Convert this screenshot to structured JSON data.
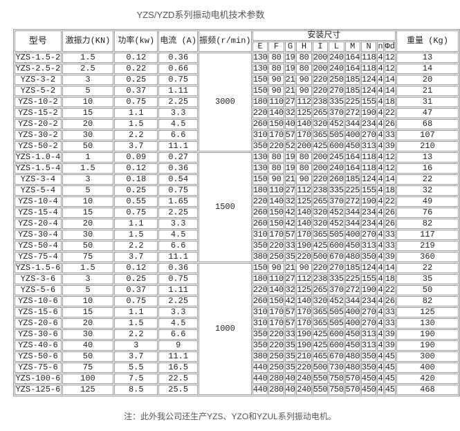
{
  "title": "YZS/YZD系列振动电机技术参数",
  "headers": {
    "model": "型号",
    "force": "激振力(KN)",
    "power": "功率(kw)",
    "current": "电流 (A)",
    "freq": "振频(r/min)",
    "install": "安装尺寸",
    "weight": "重量 (Kg)",
    "dims": [
      "E",
      "F",
      "G",
      "H",
      "I",
      "L",
      "M",
      "N",
      "n",
      "Φd"
    ]
  },
  "groups": [
    {
      "freq": "3000",
      "rows": [
        [
          "YZS-1.5-2",
          "1.5",
          "0.12",
          "0.36",
          "130",
          "80",
          "19",
          "80",
          "200",
          "240",
          "164",
          "118",
          "4",
          "12",
          "13"
        ],
        [
          "YZS-2.5-2",
          "2.5",
          "0.22",
          "0.66",
          "130",
          "80",
          "19",
          "80",
          "200",
          "240",
          "164",
          "118",
          "4",
          "12",
          "14"
        ],
        [
          "YZS-3-2",
          "3",
          "0.25",
          "0.75",
          "150",
          "90",
          "21",
          "90",
          "220",
          "250",
          "185",
          "124",
          "4",
          "14",
          "20"
        ],
        [
          "YZS-5-2",
          "5",
          "0.37",
          "1.11",
          "150",
          "90",
          "21",
          "90",
          "220",
          "270",
          "185",
          "124",
          "4",
          "14",
          "21"
        ],
        [
          "YZS-10-2",
          "10",
          "0.75",
          "2.25",
          "180",
          "110",
          "27",
          "112",
          "238",
          "335",
          "225",
          "155",
          "4",
          "18",
          "31"
        ],
        [
          "YZS-15-2",
          "15",
          "1.1",
          "3.3",
          "220",
          "140",
          "32",
          "125",
          "265",
          "370",
          "272",
          "190",
          "4",
          "22",
          "47"
        ],
        [
          "YZS-20-2",
          "20",
          "1.5",
          "4.5",
          "260",
          "150",
          "40",
          "140",
          "320",
          "452",
          "344",
          "234",
          "4",
          "26",
          "68"
        ],
        [
          "YZS-30-2",
          "30",
          "2.2",
          "6.6",
          "310",
          "170",
          "57",
          "170",
          "365",
          "505",
          "400",
          "270",
          "4",
          "33",
          "107"
        ],
        [
          "YZS-50-2",
          "50",
          "3.7",
          "11.1",
          "350",
          "220",
          "52",
          "200",
          "425",
          "600",
          "450",
          "313",
          "4",
          "39",
          "210"
        ]
      ]
    },
    {
      "freq": "1500",
      "rows": [
        [
          "YZS-1.0-4",
          "1",
          "0.09",
          "0.27",
          "130",
          "80",
          "19",
          "80",
          "200",
          "245",
          "164",
          "118",
          "4",
          "12",
          "13"
        ],
        [
          "YZS-1.5-4",
          "1.5",
          "0.12",
          "0.36",
          "130",
          "80",
          "19",
          "80",
          "200",
          "240",
          "164",
          "118",
          "4",
          "12",
          "16"
        ],
        [
          "YZS-3-4",
          "3",
          "0.18",
          "0.54",
          "150",
          "90",
          "21",
          "90",
          "220",
          "260",
          "185",
          "124",
          "4",
          "14",
          "22"
        ],
        [
          "YZS-5-4",
          "5",
          "0.25",
          "0.75",
          "180",
          "110",
          "27",
          "112",
          "238",
          "335",
          "225",
          "155",
          "4",
          "18",
          "32"
        ],
        [
          "YZS-10-4",
          "10",
          "0.55",
          "1.65",
          "220",
          "140",
          "32",
          "125",
          "265",
          "370",
          "272",
          "190",
          "4",
          "22",
          "49"
        ],
        [
          "YZS-15-4",
          "15",
          "0.75",
          "2.25",
          "260",
          "150",
          "42",
          "140",
          "320",
          "452",
          "344",
          "234",
          "4",
          "26",
          "76"
        ],
        [
          "YZS-20-4",
          "20",
          "1.1",
          "3.3",
          "260",
          "150",
          "42",
          "140",
          "320",
          "452",
          "344",
          "234",
          "4",
          "26",
          "82"
        ],
        [
          "YZS-30-4",
          "30",
          "1.5",
          "4.5",
          "310",
          "170",
          "57",
          "170",
          "365",
          "505",
          "400",
          "270",
          "4",
          "33",
          "117"
        ],
        [
          "YZS-50-4",
          "50",
          "2.2",
          "6.6",
          "350",
          "220",
          "33",
          "190",
          "425",
          "600",
          "450",
          "313",
          "4",
          "33",
          "219"
        ],
        [
          "YZS-75-4",
          "75",
          "3.7",
          "11.1",
          "380",
          "250",
          "35",
          "220",
          "500",
          "670",
          "480",
          "350",
          "4",
          "39",
          "360"
        ]
      ]
    },
    {
      "freq": "1000",
      "rows": [
        [
          "YZS-1.5-6",
          "1.5",
          "0.12",
          "0.36",
          "150",
          "90",
          "21",
          "90",
          "220",
          "270",
          "185",
          "124",
          "4",
          "14",
          "22"
        ],
        [
          "YZS-3-6",
          "3",
          "0.25",
          "0.75",
          "180",
          "110",
          "27",
          "112",
          "238",
          "335",
          "225",
          "155",
          "4",
          "18",
          "35"
        ],
        [
          "YZS-5-6",
          "5",
          "0.37",
          "1.11",
          "220",
          "140",
          "32",
          "125",
          "265",
          "370",
          "272",
          "190",
          "4",
          "22",
          "50"
        ],
        [
          "YZS-10-6",
          "10",
          "0.75",
          "2.25",
          "260",
          "150",
          "42",
          "140",
          "320",
          "452",
          "344",
          "234",
          "4",
          "26",
          "82"
        ],
        [
          "YZS-15-6",
          "15",
          "1.1",
          "3.3",
          "310",
          "170",
          "57",
          "170",
          "365",
          "505",
          "400",
          "270",
          "4",
          "33",
          "125"
        ],
        [
          "YZS-20-6",
          "20",
          "1.5",
          "4.5",
          "310",
          "170",
          "57",
          "170",
          "365",
          "505",
          "400",
          "270",
          "4",
          "33",
          "130"
        ],
        [
          "YZS-30-6",
          "30",
          "2.2",
          "6.6",
          "350",
          "220",
          "33",
          "190",
          "425",
          "600",
          "450",
          "313",
          "4",
          "39",
          "190"
        ],
        [
          "YZS-40-6",
          "40",
          "3",
          "9",
          "350",
          "220",
          "35",
          "190",
          "425",
          "600",
          "450",
          "313",
          "4",
          "39",
          "190"
        ],
        [
          "YZS-50-6",
          "50",
          "3.7",
          "11.1",
          "380",
          "250",
          "35",
          "210",
          "465",
          "670",
          "480",
          "350",
          "4",
          "45",
          "300"
        ],
        [
          "YZS-75-6",
          "75",
          "5.5",
          "16.5",
          "440",
          "250",
          "35",
          "220",
          "500",
          "730",
          "480",
          "350",
          "4",
          "45",
          "400"
        ],
        [
          "YZS-100-6",
          "100",
          "7.5",
          "22.5",
          "440",
          "280",
          "40",
          "240",
          "550",
          "750",
          "570",
          "450",
          "4",
          "45",
          "420"
        ],
        [
          "YZS-125-6",
          "125",
          "8.5",
          "25.5",
          "440",
          "280",
          "40",
          "240",
          "550",
          "750",
          "570",
          "450",
          "4",
          "45",
          "468"
        ]
      ]
    }
  ],
  "note": "注：此外我公司还生产YZS、YZO和YZUL系列振动电机。"
}
